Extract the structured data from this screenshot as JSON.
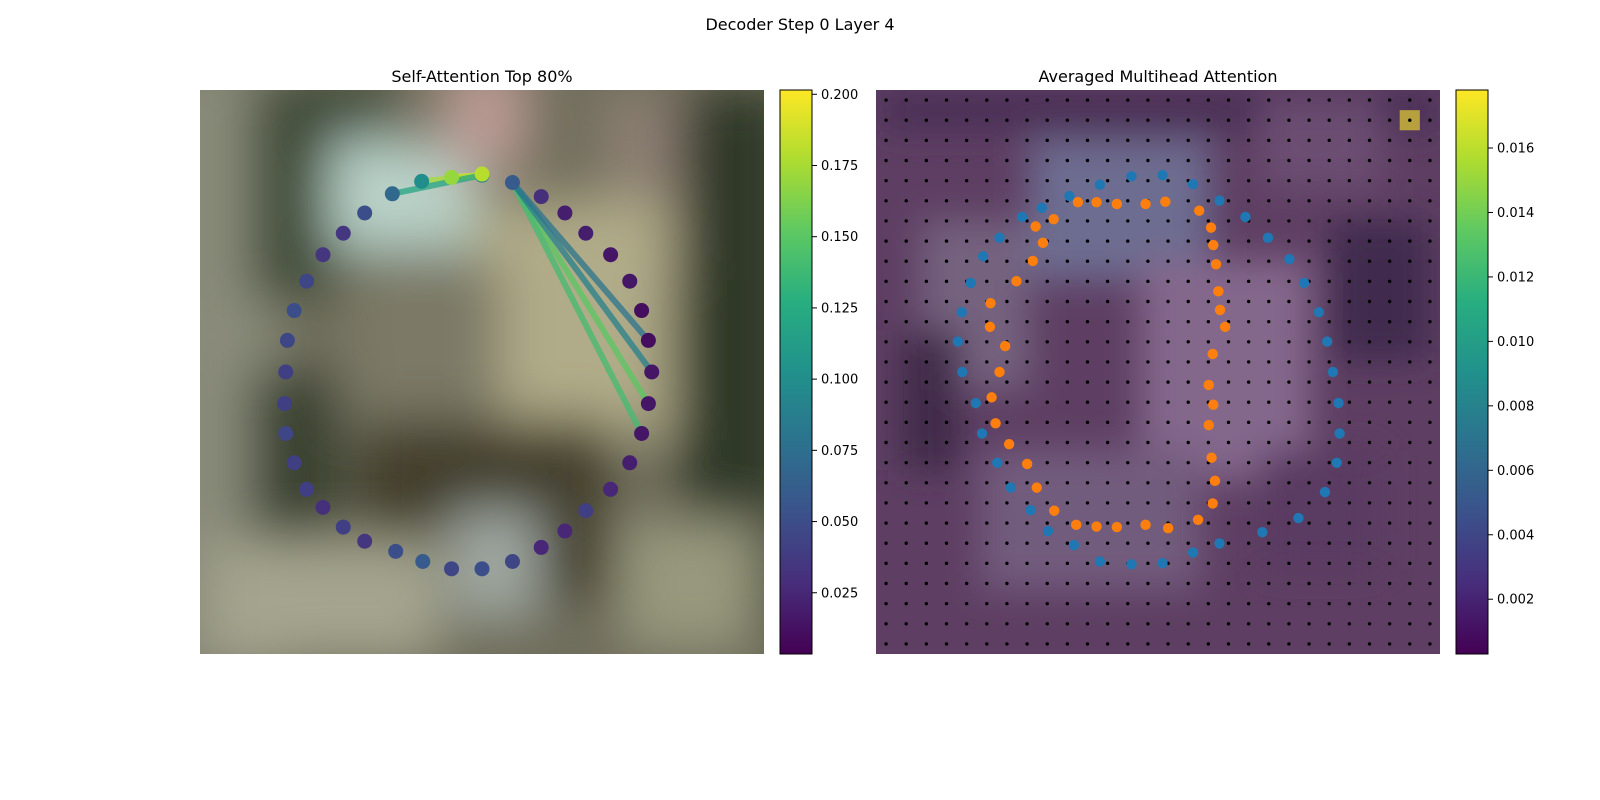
{
  "figure": {
    "title": "Decoder Step 0 Layer 4"
  },
  "chart_data": [
    {
      "type": "scatter",
      "title": "Self-Attention Top 80%",
      "xlim": [
        0,
        1
      ],
      "ylim": [
        0,
        1
      ],
      "axes_visible": false,
      "background": "blurred photographic image (outdoor scene)",
      "colormap": "viridis",
      "colorbar": {
        "vmin": 0.0035,
        "vmax": 0.2015,
        "ticks": [
          0.025,
          0.05,
          0.075,
          0.1,
          0.125,
          0.15,
          0.175,
          0.2
        ],
        "tick_labels": [
          "0.025",
          "0.050",
          "0.075",
          "0.100",
          "0.125",
          "0.150",
          "0.175",
          "0.200"
        ]
      },
      "points": [
        {
          "x": 0.5,
          "y": 0.849,
          "v": 0.095
        },
        {
          "x": 0.554,
          "y": 0.836,
          "v": 0.06
        },
        {
          "x": 0.605,
          "y": 0.811,
          "v": 0.03
        },
        {
          "x": 0.647,
          "y": 0.782,
          "v": 0.02
        },
        {
          "x": 0.684,
          "y": 0.746,
          "v": 0.02
        },
        {
          "x": 0.728,
          "y": 0.708,
          "v": 0.015
        },
        {
          "x": 0.762,
          "y": 0.661,
          "v": 0.015
        },
        {
          "x": 0.783,
          "y": 0.609,
          "v": 0.01
        },
        {
          "x": 0.795,
          "y": 0.556,
          "v": 0.01
        },
        {
          "x": 0.801,
          "y": 0.5,
          "v": 0.015
        },
        {
          "x": 0.795,
          "y": 0.444,
          "v": 0.015
        },
        {
          "x": 0.783,
          "y": 0.391,
          "v": 0.015
        },
        {
          "x": 0.762,
          "y": 0.339,
          "v": 0.02
        },
        {
          "x": 0.728,
          "y": 0.292,
          "v": 0.025
        },
        {
          "x": 0.684,
          "y": 0.254,
          "v": 0.04
        },
        {
          "x": 0.647,
          "y": 0.218,
          "v": 0.025
        },
        {
          "x": 0.605,
          "y": 0.189,
          "v": 0.025
        },
        {
          "x": 0.554,
          "y": 0.164,
          "v": 0.045
        },
        {
          "x": 0.5,
          "y": 0.151,
          "v": 0.05
        },
        {
          "x": 0.446,
          "y": 0.151,
          "v": 0.045
        },
        {
          "x": 0.395,
          "y": 0.164,
          "v": 0.06
        },
        {
          "x": 0.347,
          "y": 0.182,
          "v": 0.05
        },
        {
          "x": 0.292,
          "y": 0.2,
          "v": 0.035
        },
        {
          "x": 0.254,
          "y": 0.225,
          "v": 0.04
        },
        {
          "x": 0.218,
          "y": 0.26,
          "v": 0.03
        },
        {
          "x": 0.189,
          "y": 0.292,
          "v": 0.04
        },
        {
          "x": 0.167,
          "y": 0.339,
          "v": 0.04
        },
        {
          "x": 0.152,
          "y": 0.391,
          "v": 0.045
        },
        {
          "x": 0.15,
          "y": 0.444,
          "v": 0.04
        },
        {
          "x": 0.152,
          "y": 0.5,
          "v": 0.04
        },
        {
          "x": 0.155,
          "y": 0.556,
          "v": 0.045
        },
        {
          "x": 0.167,
          "y": 0.609,
          "v": 0.05
        },
        {
          "x": 0.189,
          "y": 0.661,
          "v": 0.045
        },
        {
          "x": 0.218,
          "y": 0.708,
          "v": 0.035
        },
        {
          "x": 0.254,
          "y": 0.746,
          "v": 0.035
        },
        {
          "x": 0.292,
          "y": 0.782,
          "v": 0.05
        },
        {
          "x": 0.341,
          "y": 0.816,
          "v": 0.07
        },
        {
          "x": 0.393,
          "y": 0.838,
          "v": 0.1
        },
        {
          "x": 0.446,
          "y": 0.845,
          "v": 0.17
        },
        {
          "x": 0.5,
          "y": 0.851,
          "v": 0.18
        }
      ],
      "edges": [
        {
          "from": 38,
          "to": 0,
          "v": 0.2
        },
        {
          "from": 37,
          "to": 0,
          "v": 0.175
        },
        {
          "from": 36,
          "to": 0,
          "v": 0.12
        },
        {
          "from": 1,
          "to": 10,
          "v": 0.15
        },
        {
          "from": 1,
          "to": 11,
          "v": 0.14
        },
        {
          "from": 1,
          "to": 9,
          "v": 0.09
        },
        {
          "from": 1,
          "to": 8,
          "v": 0.08
        }
      ]
    },
    {
      "type": "scatter",
      "title": "Averaged Multihead Attention",
      "xlim": [
        0,
        1
      ],
      "ylim": [
        0,
        1
      ],
      "axes_visible": false,
      "colormap": "viridis",
      "colorbar": {
        "vmin": 0.0003,
        "vmax": 0.0178,
        "ticks": [
          0.002,
          0.004,
          0.006,
          0.008,
          0.01,
          0.012,
          0.014,
          0.016
        ],
        "tick_labels": [
          "0.002",
          "0.004",
          "0.006",
          "0.008",
          "0.010",
          "0.012",
          "0.014",
          "0.016"
        ]
      },
      "grid_points": {
        "rows": 28,
        "cols": 28,
        "color": "#000000"
      },
      "highlight_cell": {
        "row": 1,
        "col": 26,
        "color": "#c9b43a"
      },
      "series": [
        {
          "color": "#1f77b4",
          "points": [
            {
              "x": 0.397,
              "y": 0.832
            },
            {
              "x": 0.453,
              "y": 0.847
            },
            {
              "x": 0.508,
              "y": 0.849
            },
            {
              "x": 0.562,
              "y": 0.833
            },
            {
              "x": 0.609,
              "y": 0.804
            },
            {
              "x": 0.655,
              "y": 0.775
            },
            {
              "x": 0.695,
              "y": 0.738
            },
            {
              "x": 0.733,
              "y": 0.7
            },
            {
              "x": 0.759,
              "y": 0.658
            },
            {
              "x": 0.785,
              "y": 0.606
            },
            {
              "x": 0.8,
              "y": 0.554
            },
            {
              "x": 0.81,
              "y": 0.5
            },
            {
              "x": 0.82,
              "y": 0.445
            },
            {
              "x": 0.822,
              "y": 0.391
            },
            {
              "x": 0.817,
              "y": 0.339
            },
            {
              "x": 0.796,
              "y": 0.287
            },
            {
              "x": 0.749,
              "y": 0.241
            },
            {
              "x": 0.685,
              "y": 0.216
            },
            {
              "x": 0.609,
              "y": 0.196
            },
            {
              "x": 0.562,
              "y": 0.18
            },
            {
              "x": 0.508,
              "y": 0.161
            },
            {
              "x": 0.453,
              "y": 0.159
            },
            {
              "x": 0.397,
              "y": 0.164
            },
            {
              "x": 0.351,
              "y": 0.193
            },
            {
              "x": 0.305,
              "y": 0.218
            },
            {
              "x": 0.274,
              "y": 0.255
            },
            {
              "x": 0.239,
              "y": 0.295
            },
            {
              "x": 0.215,
              "y": 0.339
            },
            {
              "x": 0.188,
              "y": 0.391
            },
            {
              "x": 0.177,
              "y": 0.445
            },
            {
              "x": 0.153,
              "y": 0.5
            },
            {
              "x": 0.145,
              "y": 0.554
            },
            {
              "x": 0.152,
              "y": 0.606
            },
            {
              "x": 0.168,
              "y": 0.658
            },
            {
              "x": 0.19,
              "y": 0.705
            },
            {
              "x": 0.219,
              "y": 0.738
            },
            {
              "x": 0.259,
              "y": 0.775
            },
            {
              "x": 0.294,
              "y": 0.791
            },
            {
              "x": 0.343,
              "y": 0.812
            }
          ]
        },
        {
          "color": "#ff7f0e",
          "points": [
            {
              "x": 0.358,
              "y": 0.801
            },
            {
              "x": 0.391,
              "y": 0.801
            },
            {
              "x": 0.427,
              "y": 0.798
            },
            {
              "x": 0.478,
              "y": 0.798
            },
            {
              "x": 0.513,
              "y": 0.802
            },
            {
              "x": 0.573,
              "y": 0.786
            },
            {
              "x": 0.594,
              "y": 0.756
            },
            {
              "x": 0.598,
              "y": 0.725
            },
            {
              "x": 0.603,
              "y": 0.691
            },
            {
              "x": 0.607,
              "y": 0.643
            },
            {
              "x": 0.61,
              "y": 0.61
            },
            {
              "x": 0.619,
              "y": 0.58
            },
            {
              "x": 0.597,
              "y": 0.532
            },
            {
              "x": 0.59,
              "y": 0.477
            },
            {
              "x": 0.598,
              "y": 0.442
            },
            {
              "x": 0.59,
              "y": 0.406
            },
            {
              "x": 0.595,
              "y": 0.348
            },
            {
              "x": 0.601,
              "y": 0.307
            },
            {
              "x": 0.597,
              "y": 0.267
            },
            {
              "x": 0.571,
              "y": 0.238
            },
            {
              "x": 0.518,
              "y": 0.223
            },
            {
              "x": 0.478,
              "y": 0.229
            },
            {
              "x": 0.427,
              "y": 0.225
            },
            {
              "x": 0.391,
              "y": 0.226
            },
            {
              "x": 0.355,
              "y": 0.229
            },
            {
              "x": 0.316,
              "y": 0.254
            },
            {
              "x": 0.285,
              "y": 0.295
            },
            {
              "x": 0.268,
              "y": 0.337
            },
            {
              "x": 0.236,
              "y": 0.372
            },
            {
              "x": 0.212,
              "y": 0.409
            },
            {
              "x": 0.205,
              "y": 0.455
            },
            {
              "x": 0.219,
              "y": 0.5
            },
            {
              "x": 0.229,
              "y": 0.546
            },
            {
              "x": 0.202,
              "y": 0.58
            },
            {
              "x": 0.203,
              "y": 0.622
            },
            {
              "x": 0.249,
              "y": 0.661
            },
            {
              "x": 0.278,
              "y": 0.697
            },
            {
              "x": 0.296,
              "y": 0.729
            },
            {
              "x": 0.283,
              "y": 0.758
            },
            {
              "x": 0.315,
              "y": 0.771
            }
          ]
        }
      ]
    }
  ]
}
